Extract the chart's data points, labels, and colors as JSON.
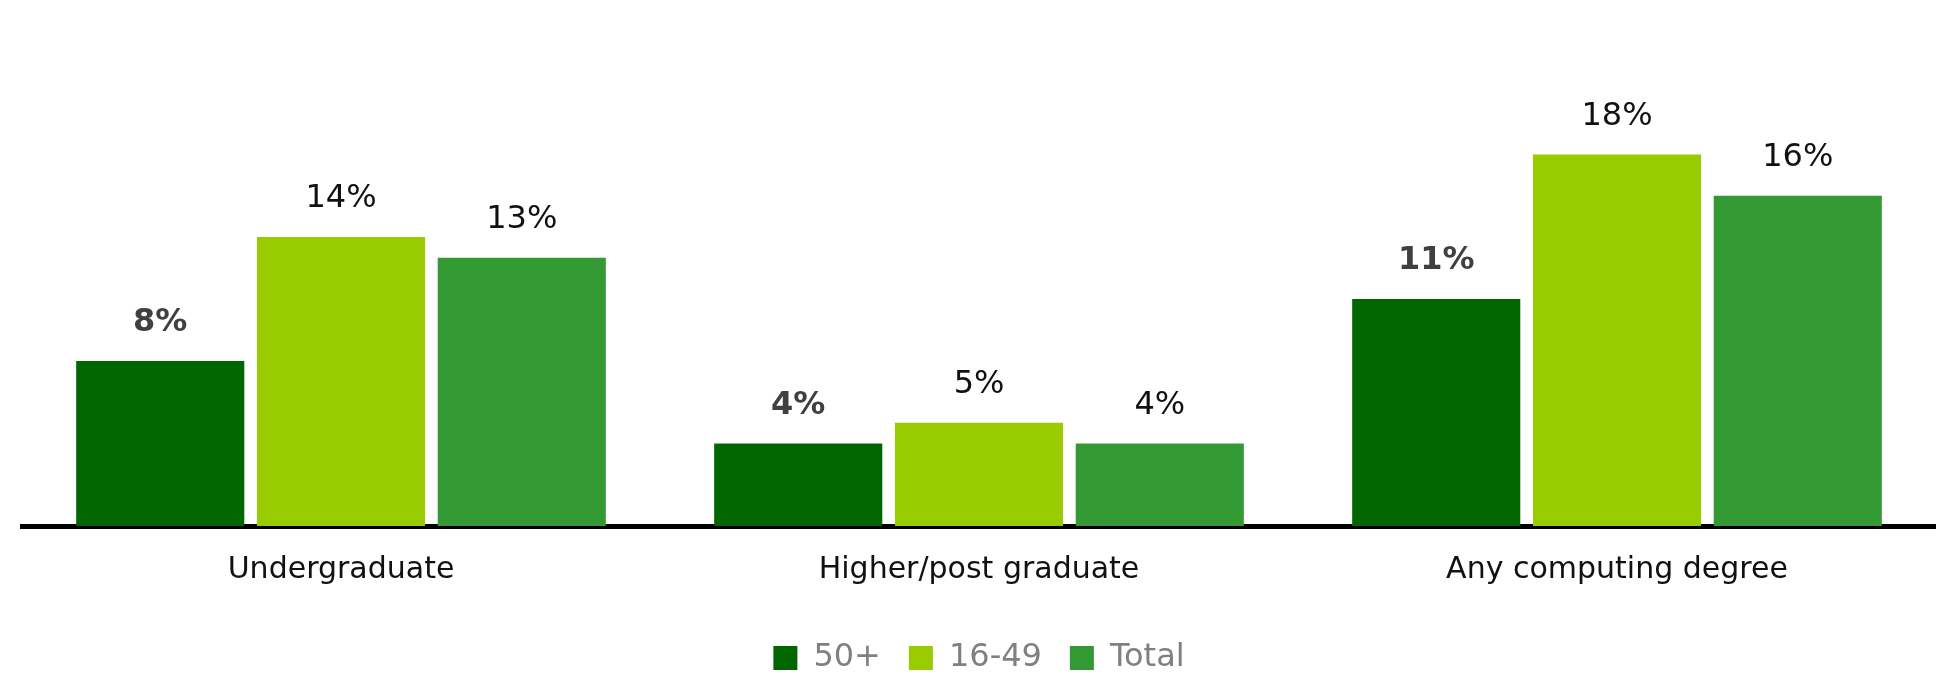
{
  "chart_data": {
    "type": "bar",
    "categories": [
      "Undergraduate",
      "Higher/post graduate",
      "Any computing degree"
    ],
    "series": [
      {
        "name": "50+",
        "color": "#006600",
        "values": [
          8,
          4,
          11
        ],
        "value_labels": [
          "8%",
          "4%",
          "11%"
        ]
      },
      {
        "name": "16-49",
        "color": "#99cc00",
        "values": [
          14,
          5,
          18
        ],
        "value_labels": [
          "14%",
          "5%",
          "18%"
        ]
      },
      {
        "name": "Total",
        "color": "#339933",
        "values": [
          13,
          4,
          16
        ],
        "value_labels": [
          "13%",
          "4%",
          "16%"
        ]
      }
    ],
    "legend": "bottom",
    "grid": false
  }
}
